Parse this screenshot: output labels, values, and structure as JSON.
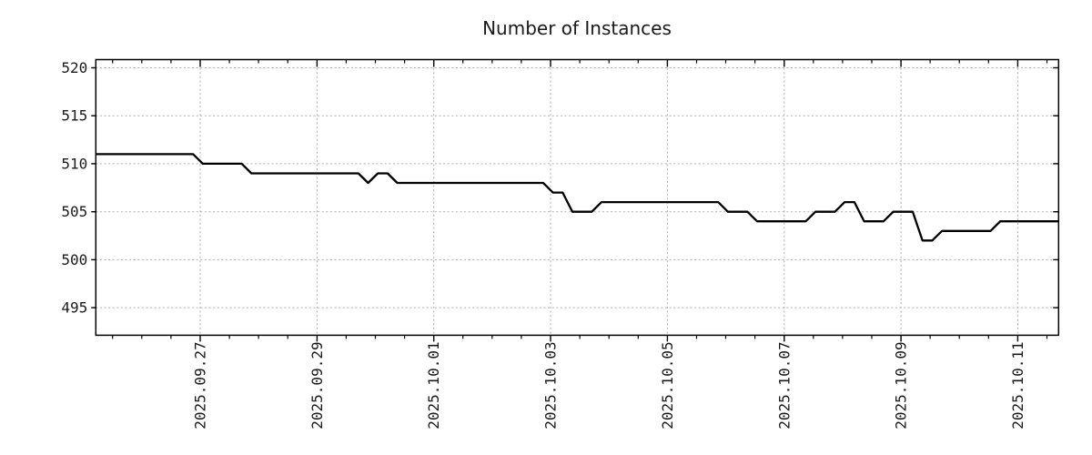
{
  "title": "Number of Instances",
  "chart_data": {
    "type": "line",
    "title": "Number of Instances",
    "xlabel": "",
    "ylabel": "",
    "legend": "none",
    "grid": "dotted both axes at major ticks",
    "ylim": [
      492.1,
      520.9
    ],
    "yticks": [
      495,
      500,
      505,
      510,
      515,
      520
    ],
    "xtick_labels": [
      "2025.09.27",
      "2025.09.29",
      "2025.10.01",
      "2025.10.03",
      "2025.10.05",
      "2025.10.07",
      "2025.10.09",
      "2025.10.11"
    ],
    "x_minor_tick_interval_hours": 12,
    "line_color": "#000000",
    "grid_color": "#adadad",
    "text_color": "#1a1a1a",
    "frame_color": "#000000",
    "background": "#ffffff",
    "series": [
      {
        "name": "Number of Instances",
        "x_start": "2025-09-25 05:00",
        "x_step_hours": 4,
        "values": [
          511,
          511,
          511,
          511,
          511,
          511,
          511,
          511,
          511,
          511,
          511,
          510,
          510,
          510,
          510,
          510,
          509,
          509,
          509,
          509,
          509,
          509,
          509,
          509,
          509,
          509,
          509,
          509,
          508,
          509,
          509,
          508,
          508,
          508,
          508,
          508,
          508,
          508,
          508,
          508,
          508,
          508,
          508,
          508,
          508,
          508,
          508,
          507,
          507,
          505,
          505,
          505,
          506,
          506,
          506,
          506,
          506,
          506,
          506,
          506,
          506,
          506,
          506,
          506,
          506,
          505,
          505,
          505,
          504,
          504,
          504,
          504,
          504,
          504,
          505,
          505,
          505,
          506,
          506,
          504,
          504,
          504,
          505,
          505,
          505,
          502,
          502,
          503,
          503,
          503,
          503,
          503,
          503,
          504,
          504,
          504,
          504,
          504,
          504,
          504
        ]
      }
    ]
  }
}
